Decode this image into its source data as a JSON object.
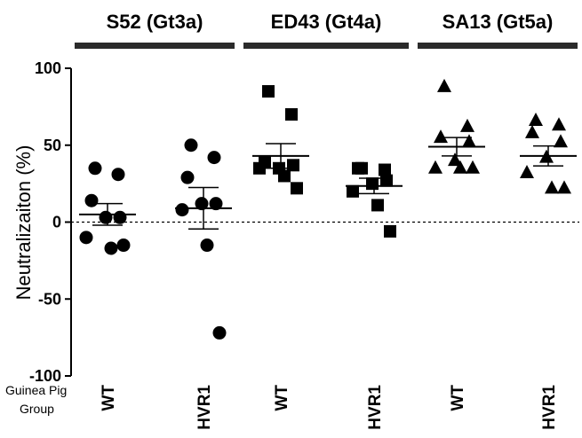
{
  "chart_data": {
    "type": "scatter",
    "ylabel": "Neutralizaiton  (%)",
    "ylim": [
      -100,
      100
    ],
    "yticks": [
      100,
      50,
      0,
      -50,
      -100
    ],
    "reference_line_y": 0,
    "group_row_label": [
      "Guinea Pig",
      "Group"
    ],
    "groups": [
      {
        "title": "S52 (Gt3a)",
        "marker": "circle"
      },
      {
        "title": "ED43 (Gt4a)",
        "marker": "square"
      },
      {
        "title": "SA13 (Gt5a)",
        "marker": "triangle"
      }
    ],
    "series": [
      {
        "category": "WT",
        "group": 0,
        "marker": "circle",
        "mean": 5,
        "sem": 7,
        "values": [
          35,
          31,
          14,
          3,
          3,
          -10,
          -17,
          -15
        ]
      },
      {
        "category": "HVR1",
        "group": 0,
        "marker": "circle",
        "mean": 9,
        "sem": 13.5,
        "values": [
          50,
          42,
          29,
          12,
          12,
          8,
          -15,
          -72
        ]
      },
      {
        "category": "WT",
        "group": 1,
        "marker": "square",
        "mean": 43,
        "sem": 8,
        "values": [
          85,
          70,
          39,
          37,
          35,
          35,
          30,
          22
        ]
      },
      {
        "category": "HVR1",
        "group": 1,
        "marker": "square",
        "mean": 23.5,
        "sem": 5,
        "values": [
          35,
          34,
          35,
          27,
          25,
          20,
          11,
          -6
        ]
      },
      {
        "category": "WT",
        "group": 2,
        "marker": "triangle",
        "mean": 49,
        "sem": 6,
        "values": [
          88,
          62,
          55,
          52,
          40,
          35,
          35,
          35
        ]
      },
      {
        "category": "HVR1",
        "group": 2,
        "marker": "triangle",
        "mean": 43,
        "sem": 6.5,
        "values": [
          66,
          63,
          58,
          52,
          42,
          32,
          22,
          22
        ]
      }
    ]
  }
}
